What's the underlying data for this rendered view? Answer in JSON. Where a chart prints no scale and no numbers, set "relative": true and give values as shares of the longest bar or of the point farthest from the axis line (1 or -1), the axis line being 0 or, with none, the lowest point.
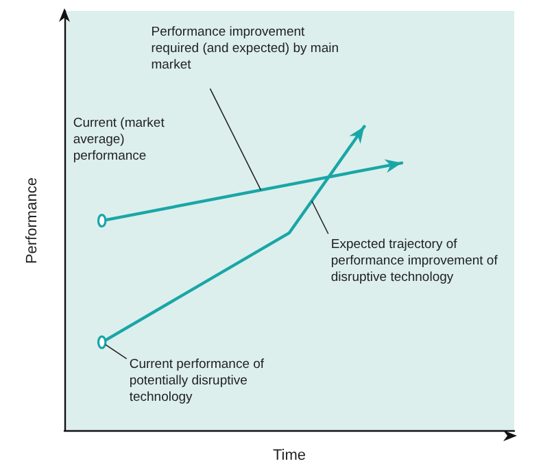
{
  "chart_data": {
    "type": "line",
    "relative": true,
    "xlabel": "Time",
    "ylabel": "Performance",
    "grid": false,
    "line_style": "solid",
    "categories": [
      null,
      null,
      null,
      null,
      null,
      null,
      null,
      null,
      null,
      null,
      null,
      null,
      null
    ],
    "series": [
      {
        "color": "#1aa6a6",
        "values": [
          null,
          0.69,
          null,
          null,
          null,
          null,
          null,
          null,
          null,
          0.88,
          null,
          null,
          null
        ]
      },
      {
        "color": "#1aa6a6",
        "values": [
          null,
          0.29,
          null,
          null,
          null,
          null,
          0.65,
          null,
          1.0,
          null,
          null,
          null,
          null
        ]
      }
    ],
    "annotations": [
      "Current (market average) performance",
      "Performance improvement required (and expected) by main market",
      "Expected trajectory of performance improvement of disruptive technology",
      "Current performance of potentially disruptive technology"
    ]
  }
}
